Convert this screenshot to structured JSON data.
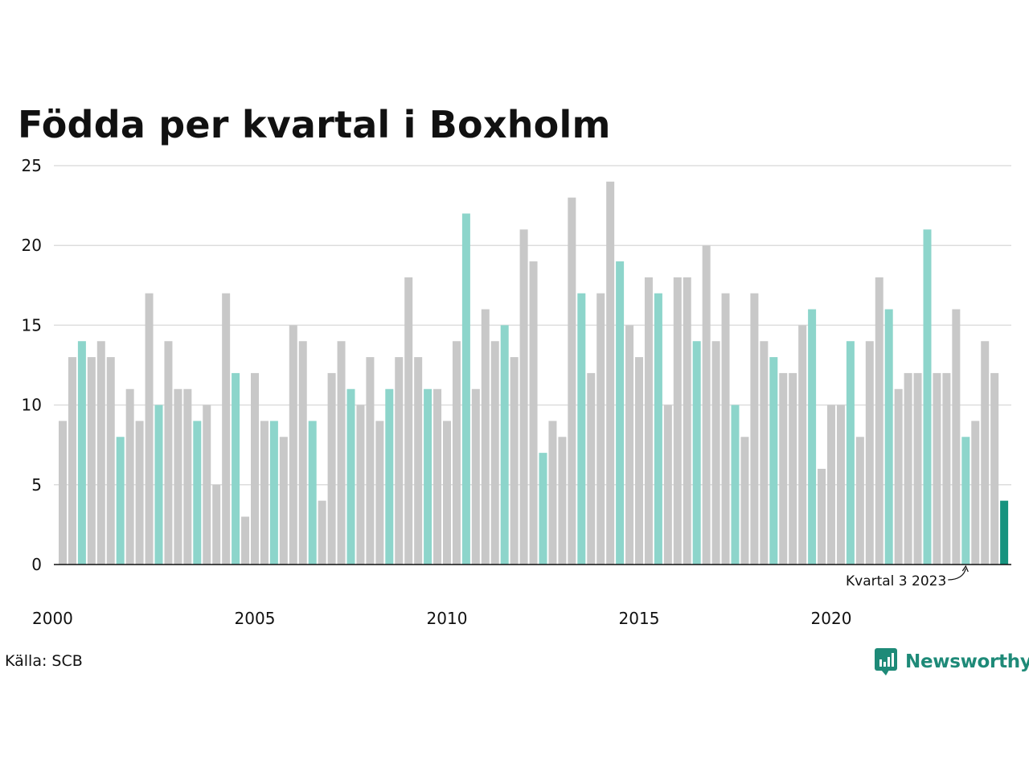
{
  "colors": {
    "bar_default": "#c8c8c8",
    "bar_q3": "#8dd5cb",
    "bar_latest": "#17937f",
    "grid": "#dddddd",
    "axis": "#111111",
    "brand": "#1e8a78"
  },
  "chart_data": {
    "type": "bar",
    "title": "Födda per kvartal i Boxholm",
    "xlabel": "",
    "ylabel": "",
    "ylim": [
      0,
      25
    ],
    "yticks": [
      0,
      5,
      10,
      15,
      20,
      25
    ],
    "year_ticks": [
      "2000",
      "2005",
      "2010",
      "2015",
      "2020"
    ],
    "start_year": 2000,
    "grid": true,
    "highlight_quarter": 3,
    "values": [
      9,
      13,
      14,
      13,
      14,
      13,
      8,
      11,
      9,
      17,
      10,
      14,
      11,
      11,
      9,
      10,
      5,
      17,
      12,
      3,
      12,
      9,
      9,
      8,
      15,
      14,
      9,
      4,
      12,
      14,
      11,
      10,
      13,
      9,
      11,
      13,
      18,
      13,
      11,
      11,
      9,
      14,
      22,
      11,
      16,
      14,
      15,
      13,
      21,
      19,
      7,
      9,
      8,
      23,
      17,
      12,
      17,
      24,
      19,
      15,
      13,
      18,
      17,
      10,
      18,
      18,
      14,
      20,
      14,
      17,
      10,
      8,
      17,
      14,
      13,
      12,
      12,
      15,
      16,
      6,
      10,
      10,
      14,
      8,
      14,
      18,
      16,
      11,
      12,
      12,
      21,
      12,
      12,
      16,
      8,
      9,
      14,
      12,
      4
    ],
    "annotation": "Kvartal 3 2023",
    "annotation_index": 94
  },
  "footer": {
    "source": "Källa: SCB",
    "brand": "Newsworthy"
  },
  "icons": {
    "brand_logo": "newsworthy-logo-icon"
  }
}
